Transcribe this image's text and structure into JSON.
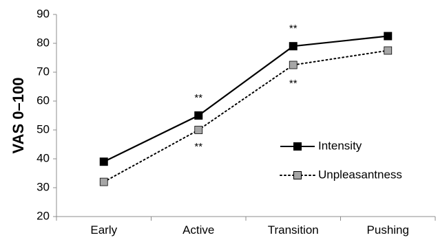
{
  "chart_data": {
    "type": "line",
    "ylabel": "VAS 0–100",
    "xlabel": "",
    "categories": [
      "Early",
      "Active",
      "Transition",
      "Pushing"
    ],
    "ylim": [
      20,
      90
    ],
    "yticks": [
      20,
      30,
      40,
      50,
      60,
      70,
      80,
      90
    ],
    "grid": false,
    "legend_position": "right",
    "series": [
      {
        "name": "Intensity",
        "values": [
          39,
          55,
          79,
          82.5
        ],
        "line_style": "solid",
        "color": "#000000",
        "marker_color": "#000000"
      },
      {
        "name": "Unpleasantness",
        "values": [
          32,
          50,
          72.5,
          77.5
        ],
        "line_style": "dotted",
        "color": "#000000",
        "marker_color": "#a6a6a6"
      }
    ],
    "annotations": [
      {
        "text": "**",
        "category": "Active",
        "value": 61
      },
      {
        "text": "**",
        "category": "Active",
        "value": 44
      },
      {
        "text": "**",
        "category": "Transition",
        "value": 85
      },
      {
        "text": "**",
        "category": "Transition",
        "value": 66
      }
    ]
  }
}
